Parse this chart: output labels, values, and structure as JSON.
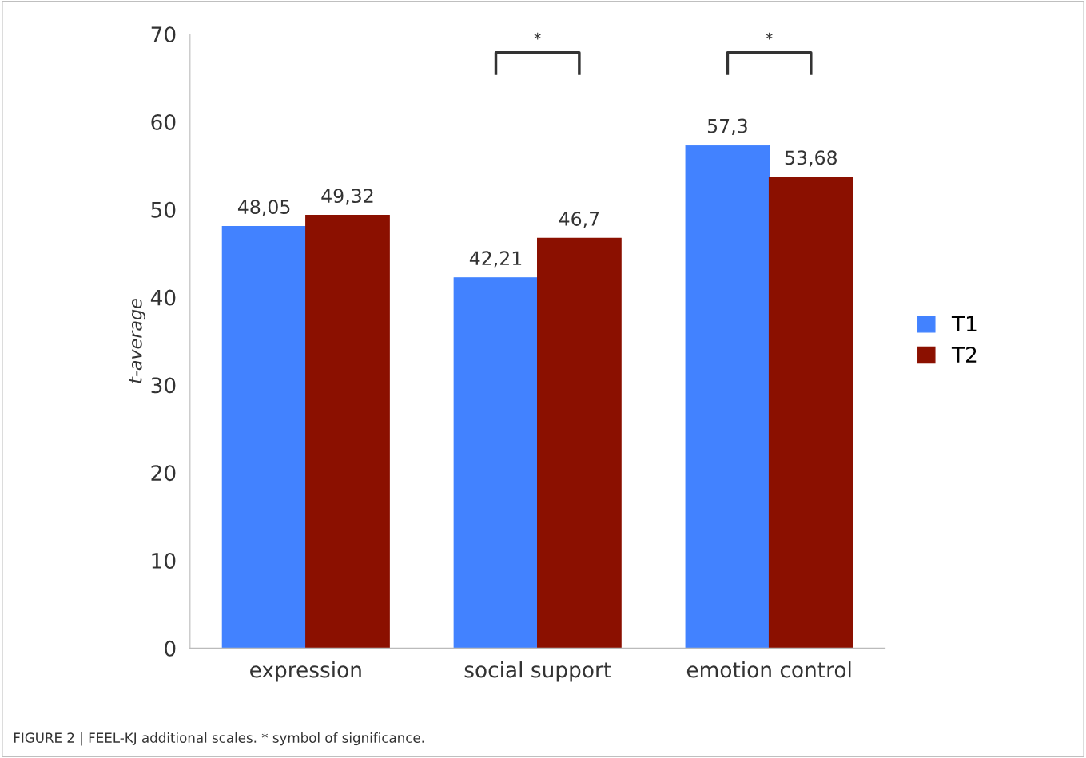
{
  "chart_data": {
    "type": "bar",
    "ylabel": "t-average",
    "categories": [
      "expression",
      "social support",
      "emotion control"
    ],
    "series": [
      {
        "name": "T1",
        "color": "#4282ff",
        "values": [
          48.05,
          42.21,
          57.3
        ],
        "value_labels": [
          "48,05",
          "42,21",
          "57,3"
        ]
      },
      {
        "name": "T2",
        "color": "#8b1000",
        "values": [
          49.32,
          46.7,
          53.68
        ],
        "value_labels": [
          "49,32",
          "46,7",
          "53,68"
        ]
      }
    ],
    "ylim": [
      0,
      70
    ],
    "yticks": [
      0,
      10,
      20,
      30,
      40,
      50,
      60,
      70
    ],
    "grid": false,
    "legend": "right",
    "annotations": [
      "*",
      "*",
      "FIGURE 2 | FEEL-KJ additional scales. * symbol of significance."
    ]
  }
}
